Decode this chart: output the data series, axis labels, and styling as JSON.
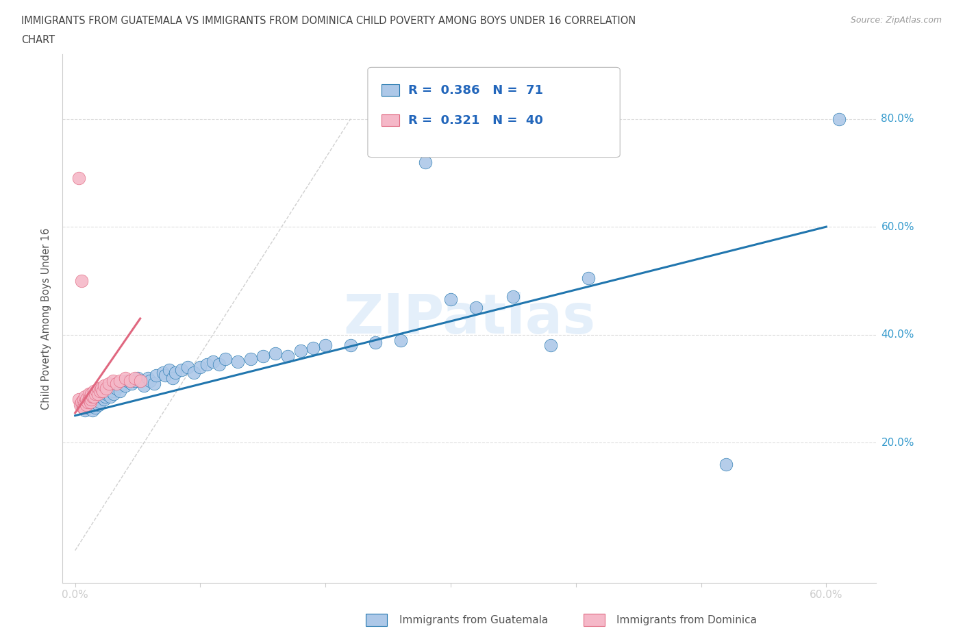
{
  "title_line1": "IMMIGRANTS FROM GUATEMALA VS IMMIGRANTS FROM DOMINICA CHILD POVERTY AMONG BOYS UNDER 16 CORRELATION",
  "title_line2": "CHART",
  "source_text": "Source: ZipAtlas.com",
  "ylabel": "Child Poverty Among Boys Under 16",
  "watermark": "ZIPatlas",
  "legend_r1": "0.386",
  "legend_n1": "71",
  "legend_r2": "0.321",
  "legend_n2": "40",
  "color_guatemala": "#adc8e8",
  "color_dominica": "#f5b8c8",
  "trendline_color_guatemala": "#2176ae",
  "trendline_color_dominica": "#e06880",
  "trendline_dashed_color": "#d0d0d0",
  "ytick_values": [
    0.2,
    0.4,
    0.6,
    0.8
  ],
  "ytick_labels": [
    "20.0%",
    "40.0%",
    "60.0%",
    "80.0%"
  ],
  "xtick_values": [
    0.0,
    0.1,
    0.2,
    0.3,
    0.4,
    0.5,
    0.6
  ],
  "xtick_labels": [
    "0.0%",
    "",
    "",
    "",
    "",
    "",
    "60.0%"
  ],
  "xlim": [
    -0.01,
    0.64
  ],
  "ylim": [
    -0.06,
    0.92
  ],
  "guatemala_x": [
    0.005,
    0.008,
    0.01,
    0.01,
    0.012,
    0.013,
    0.014,
    0.015,
    0.015,
    0.016,
    0.018,
    0.018,
    0.019,
    0.02,
    0.02,
    0.021,
    0.022,
    0.023,
    0.024,
    0.025,
    0.027,
    0.028,
    0.03,
    0.031,
    0.033,
    0.035,
    0.036,
    0.038,
    0.04,
    0.042,
    0.045,
    0.048,
    0.05,
    0.052,
    0.055,
    0.058,
    0.06,
    0.063,
    0.065,
    0.07,
    0.072,
    0.075,
    0.078,
    0.08,
    0.085,
    0.09,
    0.095,
    0.1,
    0.105,
    0.11,
    0.115,
    0.12,
    0.13,
    0.14,
    0.15,
    0.16,
    0.17,
    0.18,
    0.19,
    0.2,
    0.22,
    0.24,
    0.26,
    0.28,
    0.3,
    0.32,
    0.35,
    0.38,
    0.41,
    0.52,
    0.61
  ],
  "guatemala_y": [
    0.27,
    0.26,
    0.28,
    0.265,
    0.275,
    0.285,
    0.26,
    0.27,
    0.28,
    0.265,
    0.275,
    0.28,
    0.27,
    0.29,
    0.275,
    0.285,
    0.29,
    0.28,
    0.285,
    0.29,
    0.295,
    0.285,
    0.295,
    0.29,
    0.3,
    0.305,
    0.295,
    0.31,
    0.305,
    0.315,
    0.31,
    0.315,
    0.32,
    0.315,
    0.305,
    0.32,
    0.315,
    0.31,
    0.325,
    0.33,
    0.325,
    0.335,
    0.32,
    0.33,
    0.335,
    0.34,
    0.33,
    0.34,
    0.345,
    0.35,
    0.345,
    0.355,
    0.35,
    0.355,
    0.36,
    0.365,
    0.36,
    0.37,
    0.375,
    0.38,
    0.38,
    0.385,
    0.39,
    0.72,
    0.465,
    0.45,
    0.47,
    0.38,
    0.505,
    0.16,
    0.8
  ],
  "dominica_x": [
    0.003,
    0.004,
    0.005,
    0.006,
    0.006,
    0.007,
    0.007,
    0.008,
    0.008,
    0.009,
    0.009,
    0.01,
    0.011,
    0.011,
    0.012,
    0.012,
    0.013,
    0.013,
    0.014,
    0.015,
    0.015,
    0.016,
    0.017,
    0.018,
    0.019,
    0.02,
    0.021,
    0.022,
    0.023,
    0.025,
    0.027,
    0.03,
    0.033,
    0.036,
    0.04,
    0.044,
    0.048,
    0.052,
    0.003,
    0.005
  ],
  "dominica_y": [
    0.28,
    0.27,
    0.275,
    0.265,
    0.27,
    0.28,
    0.265,
    0.275,
    0.285,
    0.27,
    0.28,
    0.275,
    0.28,
    0.29,
    0.275,
    0.285,
    0.28,
    0.29,
    0.285,
    0.295,
    0.285,
    0.29,
    0.295,
    0.29,
    0.3,
    0.295,
    0.3,
    0.295,
    0.305,
    0.3,
    0.31,
    0.315,
    0.31,
    0.315,
    0.32,
    0.315,
    0.32,
    0.315,
    0.69,
    0.5
  ],
  "guat_trendline_x": [
    0.0,
    0.6
  ],
  "guat_trendline_y": [
    0.25,
    0.6
  ],
  "dom_trendline_x": [
    0.0,
    0.052
  ],
  "dom_trendline_y": [
    0.255,
    0.43
  ],
  "diag_line_x": [
    0.0,
    0.22
  ],
  "diag_line_y": [
    0.0,
    0.8
  ]
}
